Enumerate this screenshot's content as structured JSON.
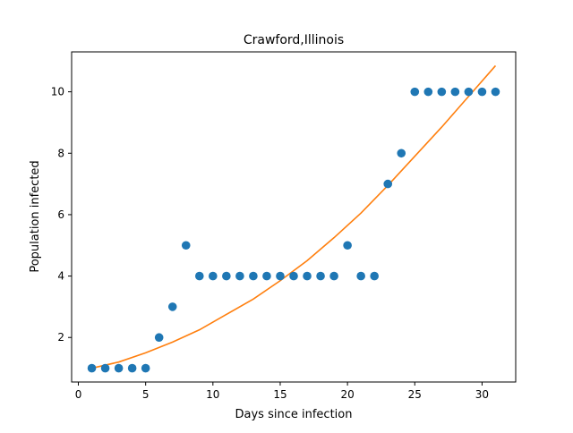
{
  "chart_data": {
    "type": "scatter",
    "title": "Crawford,Illinois",
    "xlabel": "Days since infection",
    "ylabel": "Population infected",
    "xlim": [
      -0.5,
      32.5
    ],
    "ylim": [
      0.55,
      11.3
    ],
    "xticks": [
      0,
      5,
      10,
      15,
      20,
      25,
      30
    ],
    "yticks": [
      2,
      4,
      6,
      8,
      10
    ],
    "grid": false,
    "legend": "none",
    "series": [
      {
        "kind": "scatter",
        "color": "#1f77b4",
        "x": [
          1,
          2,
          3,
          4,
          5,
          6,
          7,
          8,
          9,
          10,
          11,
          12,
          13,
          14,
          15,
          16,
          17,
          18,
          19,
          20,
          21,
          22,
          23,
          24,
          25,
          26,
          27,
          28,
          29,
          30,
          31
        ],
        "y": [
          1,
          1,
          1,
          1,
          1,
          2,
          3,
          5,
          4,
          4,
          4,
          4,
          4,
          4,
          4,
          4,
          4,
          4,
          4,
          5,
          4,
          4,
          7,
          8,
          10,
          10,
          10,
          10,
          10,
          10,
          10
        ]
      },
      {
        "kind": "line",
        "color": "#ff7f0e",
        "x": [
          1,
          3,
          5,
          7,
          9,
          11,
          13,
          15,
          17,
          19,
          21,
          23,
          25,
          27,
          29,
          31
        ],
        "y": [
          1.0,
          1.2,
          1.5,
          1.85,
          2.25,
          2.75,
          3.25,
          3.85,
          4.5,
          5.25,
          6.05,
          6.95,
          7.9,
          8.85,
          9.85,
          10.85
        ]
      }
    ]
  }
}
